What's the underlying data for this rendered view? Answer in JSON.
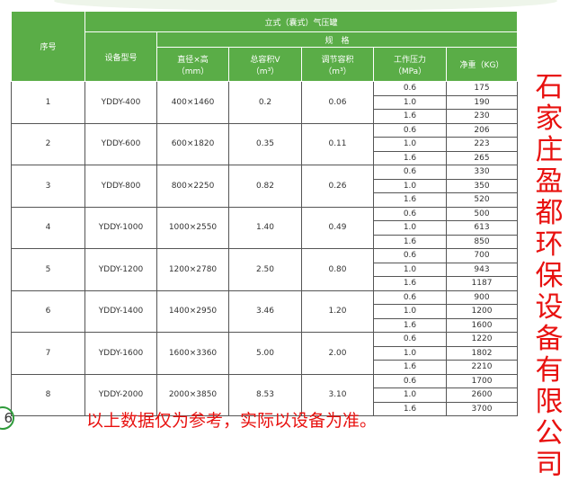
{
  "table": {
    "title": "立式（囊式）气压罐",
    "spec_label": "规　格",
    "headers": {
      "no": "序号",
      "model": "设备型号",
      "size": "直径×高\n（mm）",
      "total": "总容积V\n（m³）",
      "adjust": "调节容积\n（m³）",
      "pressure": "工作压力\n（MPa）",
      "weight": "净重（KG）"
    },
    "rows": [
      {
        "no": "1",
        "model": "YDDY-400",
        "size": "400×1460",
        "total": "0.2",
        "adjust": "0.06",
        "pressures": [
          "0.6",
          "1.0",
          "1.6"
        ],
        "weights": [
          "175",
          "190",
          "230"
        ]
      },
      {
        "no": "2",
        "model": "YDDY-600",
        "size": "600×1820",
        "total": "0.35",
        "adjust": "0.11",
        "pressures": [
          "0.6",
          "1.0",
          "1.6"
        ],
        "weights": [
          "206",
          "223",
          "265"
        ]
      },
      {
        "no": "3",
        "model": "YDDY-800",
        "size": "800×2250",
        "total": "0.82",
        "adjust": "0.26",
        "pressures": [
          "0.6",
          "1.0",
          "1.6"
        ],
        "weights": [
          "330",
          "350",
          "520"
        ]
      },
      {
        "no": "4",
        "model": "YDDY-1000",
        "size": "1000×2550",
        "total": "1.40",
        "adjust": "0.49",
        "pressures": [
          "0.6",
          "1.0",
          "1.6"
        ],
        "weights": [
          "500",
          "613",
          "850"
        ]
      },
      {
        "no": "5",
        "model": "YDDY-1200",
        "size": "1200×2780",
        "total": "2.50",
        "adjust": "0.80",
        "pressures": [
          "0.6",
          "1.0",
          "1.6"
        ],
        "weights": [
          "700",
          "943",
          "1187"
        ]
      },
      {
        "no": "6",
        "model": "YDDY-1400",
        "size": "1400×2950",
        "total": "3.46",
        "adjust": "1.20",
        "pressures": [
          "0.6",
          "1.0",
          "1.6"
        ],
        "weights": [
          "900",
          "1200",
          "1600"
        ]
      },
      {
        "no": "7",
        "model": "YDDY-1600",
        "size": "1600×3360",
        "total": "5.00",
        "adjust": "2.00",
        "pressures": [
          "0.6",
          "1.0",
          "1.6"
        ],
        "weights": [
          "1220",
          "1802",
          "2210"
        ]
      },
      {
        "no": "8",
        "model": "YDDY-2000",
        "size": "2000×3850",
        "total": "8.53",
        "adjust": "3.10",
        "pressures": [
          "0.6",
          "1.0",
          "1.6"
        ],
        "weights": [
          "1700",
          "2600",
          "3700"
        ]
      }
    ]
  },
  "company": "石家庄盈都环保设备有限公司",
  "note": "以上数据仅为参考，实际以设备为准。",
  "page_number": "6",
  "colors": {
    "header_green": "#5aad47",
    "red_text": "#e8110f"
  }
}
